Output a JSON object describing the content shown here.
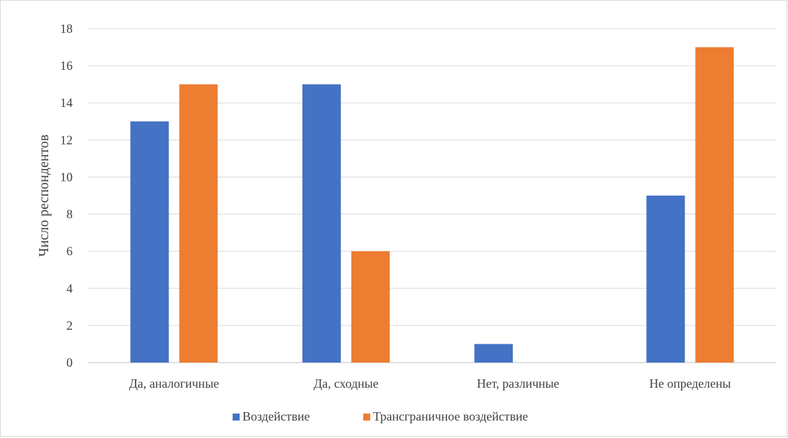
{
  "chart_data": {
    "type": "bar",
    "title": "",
    "xlabel": "",
    "ylabel": "Число респондентов",
    "ylim": [
      0,
      18
    ],
    "yticks": [
      0,
      2,
      4,
      6,
      8,
      10,
      12,
      14,
      16,
      18
    ],
    "grid": true,
    "legend_position": "bottom",
    "categories": [
      "Да, аналогичные",
      "Да, сходные",
      "Нет, различные",
      "Не определены"
    ],
    "series": [
      {
        "name": "Воздействие",
        "color": "#4472C4",
        "values": [
          13,
          15,
          1,
          9
        ]
      },
      {
        "name": "Трансграничное воздействие",
        "color": "#ED7D31",
        "values": [
          15,
          6,
          0,
          17
        ]
      }
    ]
  }
}
